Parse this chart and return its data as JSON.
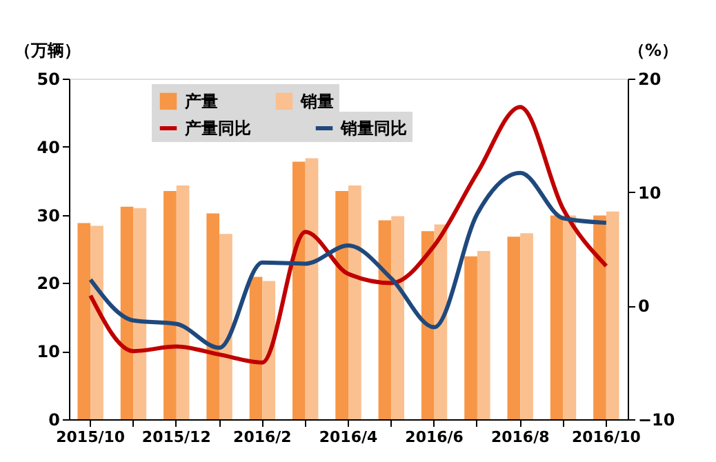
{
  "chart_data": {
    "type": "bar",
    "categories": [
      "2015/10",
      null,
      "2015/12",
      null,
      "2016/2",
      null,
      "2016/4",
      null,
      "2016/6",
      null,
      "2016/8",
      null,
      "2016/10"
    ],
    "series": [
      {
        "name": "产量",
        "color": "#f79646",
        "values": [
          28.8,
          31.2,
          33.5,
          30.2,
          20.9,
          37.8,
          33.5,
          29.2,
          27.6,
          23.9,
          26.8,
          29.9,
          29.9
        ]
      },
      {
        "name": "销量",
        "color": "#fac090",
        "values": [
          28.4,
          31.0,
          34.3,
          27.2,
          20.3,
          38.3,
          34.3,
          29.8,
          28.6,
          24.7,
          27.3,
          29.9,
          30.5
        ]
      },
      {
        "name": "产量同比",
        "type": "line",
        "axis": "y2",
        "color": "#c00000",
        "values": [
          0.9,
          -4.0,
          -3.6,
          -4.3,
          -5.0,
          6.5,
          2.8,
          2.0,
          5.3,
          11.7,
          17.5,
          8.5,
          3.5
        ]
      },
      {
        "name": "销量同比",
        "type": "line",
        "axis": "y2",
        "color": "#1f497d",
        "values": [
          2.3,
          -1.3,
          -1.6,
          -3.7,
          3.8,
          3.7,
          5.3,
          2.4,
          -1.9,
          8.1,
          11.7,
          7.7,
          7.3
        ]
      }
    ],
    "ylabel": "（万辆）",
    "y2label": "（%）",
    "ylim": [
      0,
      50
    ],
    "yticks": [
      0,
      10,
      20,
      30,
      40,
      50
    ],
    "y2lim": [
      -10,
      20
    ],
    "y2ticks": [
      -10,
      0,
      10,
      20
    ],
    "legend": "top",
    "grid": false
  }
}
